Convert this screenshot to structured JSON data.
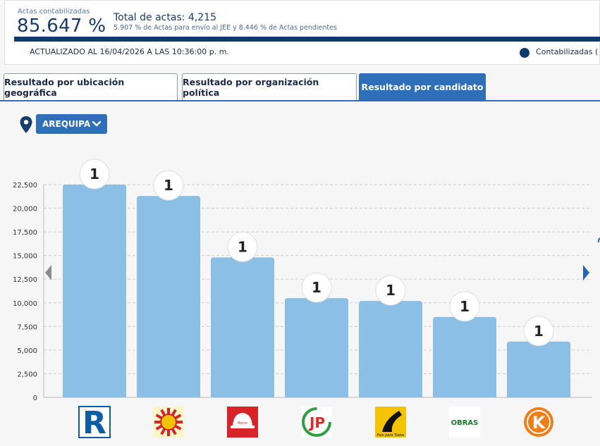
{
  "header": {
    "pct_label": "Actas contabilizadas",
    "pct_value": "85.647 %",
    "total_label": "Total de actas: 4,215",
    "subtext": "5.907 % de Actas para envío al JEE y 8.446 % de Actas pendientes",
    "progress_fraction": 0.85647,
    "updated": "ACTUALIZADO AL 16/04/2026 A LAS 10:36:00 p. m.",
    "legend_label": "Contabilizadas ("
  },
  "tabs": [
    {
      "label": "Resultado por ubicación geográfica",
      "active": false
    },
    {
      "label": "Resultado por organización política",
      "active": false
    },
    {
      "label": "Resultado por candidato",
      "active": true
    }
  ],
  "filter": {
    "department": "AREQUIPA"
  },
  "colors": {
    "accent": "#2f6fb9",
    "navy": "#0f3a6e",
    "bar": "#8bbfe6"
  },
  "icons": {
    "location": "location-pin-icon",
    "dropdown": "chevron-down-icon",
    "prev": "chevron-left-icon",
    "next": "chevron-right-icon"
  },
  "chart_data": {
    "type": "bar",
    "title": "",
    "xlabel": "",
    "ylabel": "",
    "ylim": [
      0,
      22500
    ],
    "yticks": [
      0,
      2500,
      5000,
      7500,
      10000,
      12500,
      15000,
      17500,
      20000,
      22500
    ],
    "ytick_labels": [
      "0",
      "2,500",
      "5,000",
      "7,500",
      "10,000",
      "12,500",
      "15,000",
      "17,500",
      "20,000",
      "22,500"
    ],
    "grid": true,
    "categories": [
      "R",
      "sun-emblem",
      "Rocio helmet",
      "JP",
      "Pais para Todos",
      "OBRAS",
      "K"
    ],
    "values": [
      22500,
      21300,
      14800,
      10500,
      10200,
      8500,
      5900
    ],
    "data_labels": [
      "1",
      "1",
      "1",
      "1",
      "1",
      "1",
      "1"
    ]
  },
  "logos": [
    {
      "name": "party-logo-r",
      "text": "R",
      "color": "#0d5ea8"
    },
    {
      "name": "party-logo-sun",
      "text": "",
      "color": "#f2c300"
    },
    {
      "name": "party-logo-helmet",
      "text": "Rocio",
      "color": "#d8232a"
    },
    {
      "name": "party-logo-jp",
      "text": "JP",
      "color": "#e02b2b"
    },
    {
      "name": "party-logo-road",
      "text": "País para Todos",
      "color": "#f5c400"
    },
    {
      "name": "party-logo-obras",
      "text": "OBRAS",
      "color": "#1b7a2f"
    },
    {
      "name": "party-logo-k",
      "text": "K",
      "color": "#f07d16"
    }
  ]
}
